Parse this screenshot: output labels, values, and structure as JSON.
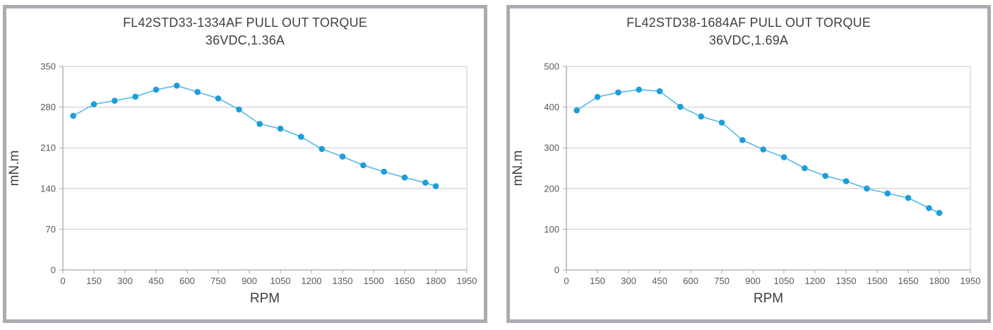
{
  "page": {
    "background_color": "#ffffff",
    "panel_border_color": "#a9adb2"
  },
  "chart_data": [
    {
      "type": "line",
      "title": "FL42STD33-1334AF PULL OUT TORQUE",
      "subtitle": "36VDC,1.36A",
      "xlabel": "RPM",
      "ylabel": "mN.m",
      "xlim": [
        0,
        1950
      ],
      "ylim": [
        0,
        350
      ],
      "x_ticks": [
        0,
        150,
        300,
        450,
        600,
        750,
        900,
        1050,
        1200,
        1350,
        1500,
        1650,
        1800,
        1950
      ],
      "y_ticks": [
        0,
        70,
        140,
        210,
        280,
        350
      ],
      "grid": "horizontal",
      "legend": "none",
      "x": [
        50,
        150,
        250,
        350,
        450,
        550,
        650,
        750,
        850,
        950,
        1050,
        1150,
        1250,
        1350,
        1450,
        1550,
        1650,
        1750,
        1800
      ],
      "series": [
        {
          "name": "pull-out-torque",
          "values": [
            265,
            285,
            291,
            298,
            310,
            317,
            306,
            295,
            276,
            251,
            243,
            229,
            208,
            195,
            180,
            169,
            159,
            150,
            144
          ]
        }
      ],
      "line_color": "#5bbde9",
      "marker_color": "#1d9dda",
      "grid_color": "#c9c9c9",
      "axis_color": "#a6a6a6"
    },
    {
      "type": "line",
      "title": "FL42STD38-1684AF PULL OUT TORQUE",
      "subtitle": "36VDC,1.69A",
      "xlabel": "RPM",
      "ylabel": "mN.m",
      "xlim": [
        0,
        1950
      ],
      "ylim": [
        0,
        500
      ],
      "x_ticks": [
        0,
        150,
        300,
        450,
        600,
        750,
        900,
        1050,
        1200,
        1350,
        1500,
        1650,
        1800,
        1950
      ],
      "y_ticks": [
        0,
        100,
        200,
        300,
        400,
        500
      ],
      "grid": "horizontal",
      "legend": "none",
      "x": [
        50,
        150,
        250,
        350,
        450,
        550,
        650,
        750,
        850,
        950,
        1050,
        1150,
        1250,
        1350,
        1450,
        1550,
        1650,
        1750,
        1800
      ],
      "series": [
        {
          "name": "pull-out-torque",
          "values": [
            392,
            425,
            436,
            443,
            439,
            401,
            377,
            362,
            319,
            296,
            277,
            250,
            231,
            218,
            200,
            188,
            177,
            152,
            140
          ]
        }
      ],
      "line_color": "#5bbde9",
      "marker_color": "#1d9dda",
      "grid_color": "#c9c9c9",
      "axis_color": "#a6a6a6"
    }
  ]
}
